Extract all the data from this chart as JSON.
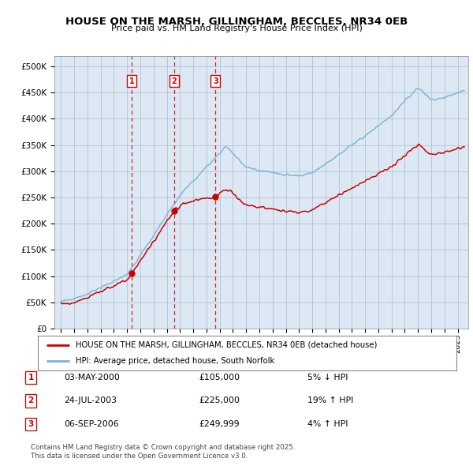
{
  "title": "HOUSE ON THE MARSH, GILLINGHAM, BECCLES, NR34 0EB",
  "subtitle": "Price paid vs. HM Land Registry's House Price Index (HPI)",
  "plot_bg_color": "#dce9f5",
  "legend_entries": [
    "HOUSE ON THE MARSH, GILLINGHAM, BECCLES, NR34 0EB (detached house)",
    "HPI: Average price, detached house, South Norfolk"
  ],
  "transactions": [
    {
      "num": 1,
      "date": "03-MAY-2000",
      "price": "£105,000",
      "pct": "5%",
      "dir": "↓",
      "year": 2000.35,
      "price_val": 105000
    },
    {
      "num": 2,
      "date": "24-JUL-2003",
      "price": "£225,000",
      "pct": "19%",
      "dir": "↑",
      "year": 2003.56,
      "price_val": 225000
    },
    {
      "num": 3,
      "date": "06-SEP-2006",
      "price": "£249,999",
      "pct": "4%",
      "dir": "↑",
      "year": 2006.68,
      "price_val": 249999
    }
  ],
  "footer_line1": "Contains HM Land Registry data © Crown copyright and database right 2025.",
  "footer_line2": "This data is licensed under the Open Government Licence v3.0.",
  "ylim": [
    0,
    520000
  ],
  "yticks": [
    0,
    50000,
    100000,
    150000,
    200000,
    250000,
    300000,
    350000,
    400000,
    450000,
    500000
  ],
  "xlim_start": 1994.5,
  "xlim_end": 2025.8,
  "hpi_color": "#7ab4d4",
  "prop_color": "#cc0000",
  "dashed_color": "#cc0000"
}
